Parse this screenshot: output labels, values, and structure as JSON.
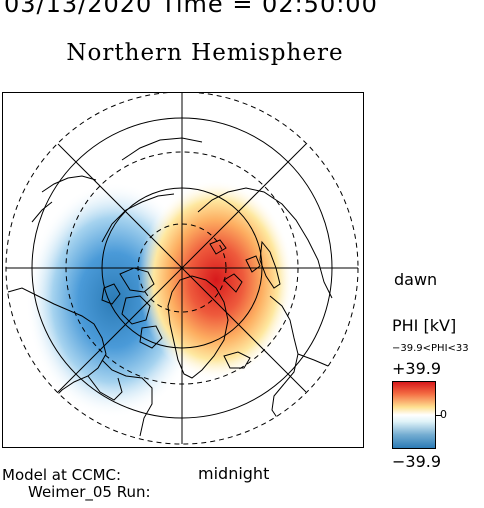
{
  "header": {
    "datetime_line": "03/13/2020 Time = 02:50:00"
  },
  "title": "Northern Hemisphere",
  "map": {
    "projection": "polar",
    "orientation_labels": {
      "right": "dawn",
      "bottom": "midnight"
    },
    "features": [
      "coastlines",
      "latitude-circles",
      "meridian-lines",
      "electric-potential-pattern"
    ],
    "potential_cells": [
      {
        "side": "dusk",
        "sign": "negative",
        "color": "#2c7bb6"
      },
      {
        "side": "dawn",
        "sign": "positive",
        "color": "#d7191c"
      }
    ]
  },
  "footer": {
    "model_line": "Model at CCMC:",
    "run_line": "Weimer_05 Run:"
  },
  "colorbar": {
    "title": "PHI [kV]",
    "range_text": "−39.9<PHI<33",
    "max_label": "+39.9",
    "zero_label": "0",
    "min_label": "−39.9",
    "colors": {
      "positive": "#d7191c",
      "neutral": "#ffffff",
      "negative": "#2c7bb6"
    }
  }
}
